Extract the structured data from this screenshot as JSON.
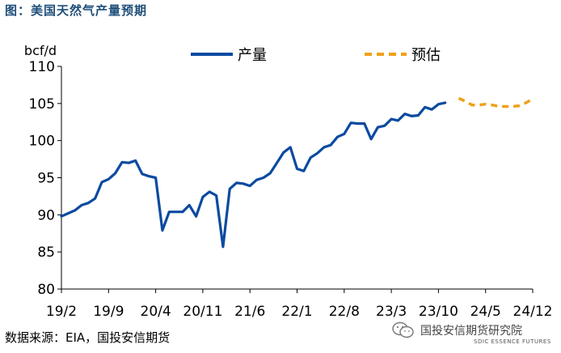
{
  "page": {
    "title": "图：美国天然气产量预期",
    "source": "数据来源：EIA，国投安信期货"
  },
  "watermark": {
    "text": "国投安信期货研究院",
    "subtext": "SDIC ESSENCE FUTURES"
  },
  "colors": {
    "production": "#0b4aa0",
    "forecast": "#f0a01a",
    "title": "#1f4e79",
    "axis": "#000000"
  },
  "chart_data": {
    "type": "line",
    "ylabel": "bcf/d",
    "ylim": [
      80,
      110
    ],
    "yticks": [
      80,
      85,
      90,
      95,
      100,
      105,
      110
    ],
    "xlim": [
      "2019-02",
      "2024-12"
    ],
    "xticks": [
      "2019-02",
      "2019-09",
      "2020-04",
      "2020-11",
      "2021-06",
      "2022-01",
      "2022-08",
      "2023-03",
      "2023-10",
      "2024-05",
      "2024-12"
    ],
    "xtick_labels": [
      "19/2",
      "19/9",
      "20/4",
      "20/11",
      "21/6",
      "22/1",
      "22/8",
      "23/3",
      "23/10",
      "24/5",
      "24/12"
    ],
    "legend_position": "top",
    "grid": false,
    "series": [
      {
        "name": "产量",
        "style": "solid",
        "points": [
          [
            "2019-02",
            89.8
          ],
          [
            "2019-03",
            90.2
          ],
          [
            "2019-04",
            90.6
          ],
          [
            "2019-05",
            91.3
          ],
          [
            "2019-06",
            91.6
          ],
          [
            "2019-07",
            92.2
          ],
          [
            "2019-08",
            94.4
          ],
          [
            "2019-09",
            94.8
          ],
          [
            "2019-10",
            95.6
          ],
          [
            "2019-11",
            97.1
          ],
          [
            "2019-12",
            97.0
          ],
          [
            "2020-01",
            97.3
          ],
          [
            "2020-02",
            95.5
          ],
          [
            "2020-03",
            95.2
          ],
          [
            "2020-04",
            95.0
          ],
          [
            "2020-05",
            87.9
          ],
          [
            "2020-06",
            90.4
          ],
          [
            "2020-07",
            90.4
          ],
          [
            "2020-08",
            90.4
          ],
          [
            "2020-09",
            91.3
          ],
          [
            "2020-10",
            89.8
          ],
          [
            "2020-11",
            92.4
          ],
          [
            "2020-12",
            93.1
          ],
          [
            "2021-01",
            92.6
          ],
          [
            "2021-02",
            85.7
          ],
          [
            "2021-03",
            93.5
          ],
          [
            "2021-04",
            94.3
          ],
          [
            "2021-05",
            94.2
          ],
          [
            "2021-06",
            93.9
          ],
          [
            "2021-07",
            94.7
          ],
          [
            "2021-08",
            95.0
          ],
          [
            "2021-09",
            95.6
          ],
          [
            "2021-10",
            97.0
          ],
          [
            "2021-11",
            98.4
          ],
          [
            "2021-12",
            99.1
          ],
          [
            "2022-01",
            96.2
          ],
          [
            "2022-02",
            95.9
          ],
          [
            "2022-03",
            97.7
          ],
          [
            "2022-04",
            98.3
          ],
          [
            "2022-05",
            99.1
          ],
          [
            "2022-06",
            99.4
          ],
          [
            "2022-07",
            100.5
          ],
          [
            "2022-08",
            100.9
          ],
          [
            "2022-09",
            102.4
          ],
          [
            "2022-10",
            102.3
          ],
          [
            "2022-11",
            102.3
          ],
          [
            "2022-12",
            100.2
          ],
          [
            "2023-01",
            101.8
          ],
          [
            "2023-02",
            102.0
          ],
          [
            "2023-03",
            102.9
          ],
          [
            "2023-04",
            102.7
          ],
          [
            "2023-05",
            103.6
          ],
          [
            "2023-06",
            103.3
          ],
          [
            "2023-07",
            103.4
          ],
          [
            "2023-08",
            104.5
          ],
          [
            "2023-09",
            104.2
          ],
          [
            "2023-10",
            104.9
          ],
          [
            "2023-11",
            105.1
          ]
        ]
      },
      {
        "name": "预估",
        "style": "dashed",
        "points": [
          [
            "2024-01",
            105.7
          ],
          [
            "2024-02",
            105.3
          ],
          [
            "2024-03",
            104.8
          ],
          [
            "2024-04",
            104.8
          ],
          [
            "2024-05",
            104.9
          ],
          [
            "2024-06",
            104.8
          ],
          [
            "2024-07",
            104.6
          ],
          [
            "2024-08",
            104.6
          ],
          [
            "2024-09",
            104.6
          ],
          [
            "2024-10",
            104.7
          ],
          [
            "2024-11",
            105.1
          ],
          [
            "2024-12",
            105.6
          ]
        ]
      }
    ]
  }
}
